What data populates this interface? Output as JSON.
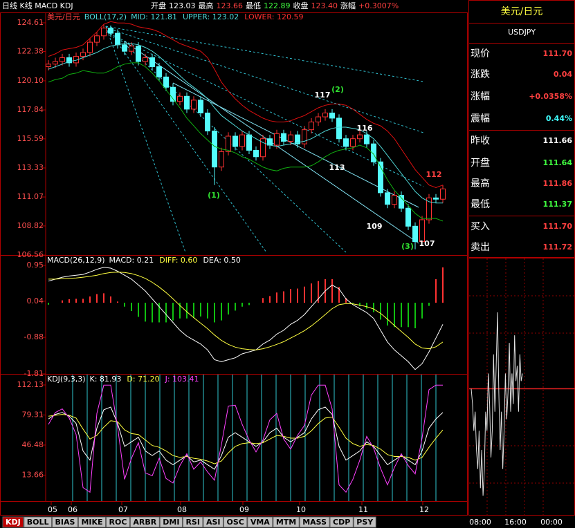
{
  "header": {
    "title": "日线 K线 MACD KDJ",
    "quote": [
      {
        "label": "开盘",
        "value": "123.03"
      },
      {
        "label": "最高",
        "value": "123.66"
      },
      {
        "label": "最低",
        "value": "122.89"
      },
      {
        "label": "收盘",
        "value": "123.40"
      },
      {
        "label": "涨幅",
        "value": "+0.3007%"
      }
    ]
  },
  "chart_data": [
    {
      "type": "candlestick",
      "title": "美元/日元",
      "indicator": "BOLL(17,2)",
      "legend": [
        "MID: 121.81",
        "UPPER: 123.02",
        "LOWER: 120.59"
      ],
      "ylim": [
        106.56,
        124.61
      ],
      "yticks": [
        124.61,
        122.38,
        {
          "value": 120.1,
          "label": "120.10"
        },
        117.84,
        115.59,
        113.33,
        111.07,
        108.82,
        106.56
      ],
      "up_color": "#ff3232",
      "down_color": "#54fcfc",
      "open": [
        121.2,
        121.4,
        121.6,
        121.9,
        121.5,
        122.0,
        122.3,
        123.1,
        123.6,
        124.2,
        123.8,
        122.9,
        122.4,
        122.8,
        121.6,
        121.9,
        121.2,
        120.4,
        119.6,
        118.5,
        118.9,
        117.9,
        118.6,
        117.6,
        116.2,
        113.4,
        114.6,
        115.8,
        115.0,
        115.9,
        114.7,
        114.2,
        115.6,
        115.1,
        116.0,
        115.4,
        115.9,
        115.2,
        116.3,
        116.9,
        117.3,
        117.6,
        117.2,
        115.6,
        115.0,
        115.6,
        115.9,
        115.2,
        113.8,
        111.4,
        110.5,
        111.2,
        110.2,
        108.8,
        107.6,
        109.3,
        111.0,
        110.9
      ],
      "high": [
        121.7,
        121.9,
        122.2,
        122.2,
        122.3,
        122.6,
        123.4,
        123.9,
        124.5,
        124.4,
        124.1,
        123.2,
        123.1,
        123.1,
        122.2,
        122.2,
        121.5,
        120.7,
        119.9,
        119.2,
        119.2,
        118.9,
        118.9,
        117.9,
        116.5,
        114.9,
        116.1,
        116.1,
        116.2,
        116.2,
        115.0,
        115.9,
        115.9,
        116.3,
        116.3,
        116.2,
        116.2,
        116.6,
        117.2,
        117.6,
        117.9,
        117.9,
        117.5,
        115.9,
        115.9,
        116.2,
        116.2,
        115.5,
        114.1,
        111.7,
        111.5,
        111.5,
        110.5,
        109.1,
        109.6,
        111.3,
        111.3,
        112.0
      ],
      "low": [
        120.9,
        121.1,
        121.3,
        121.2,
        121.2,
        121.7,
        122.0,
        122.8,
        123.3,
        123.5,
        122.6,
        122.1,
        122.1,
        121.3,
        121.3,
        120.9,
        120.1,
        119.3,
        118.2,
        118.2,
        117.6,
        117.6,
        117.3,
        115.9,
        112.0,
        113.1,
        114.3,
        114.7,
        114.7,
        114.4,
        113.9,
        113.9,
        114.8,
        114.8,
        115.1,
        115.1,
        114.9,
        114.9,
        116.0,
        116.6,
        117.0,
        116.9,
        115.3,
        114.7,
        114.7,
        115.3,
        114.9,
        113.5,
        111.1,
        110.2,
        110.2,
        109.9,
        108.5,
        107.0,
        107.3,
        109.0,
        110.6,
        110.6
      ],
      "close": [
        121.4,
        121.6,
        121.9,
        121.5,
        122.0,
        122.3,
        123.1,
        123.6,
        124.2,
        123.8,
        122.9,
        122.4,
        122.8,
        121.6,
        121.9,
        121.2,
        120.4,
        119.6,
        118.5,
        118.9,
        117.9,
        118.6,
        117.6,
        116.2,
        113.4,
        114.6,
        115.8,
        115.0,
        115.9,
        114.7,
        114.2,
        115.6,
        115.1,
        116.0,
        115.4,
        115.9,
        115.2,
        116.3,
        116.9,
        117.3,
        117.6,
        117.2,
        115.6,
        115.0,
        115.6,
        115.9,
        115.2,
        113.8,
        111.4,
        110.5,
        111.2,
        110.2,
        108.8,
        107.6,
        109.3,
        111.0,
        110.9,
        111.7
      ],
      "series": [
        {
          "name": "MID",
          "color": "#50d8d8",
          "values": [
            121.0,
            121.2,
            121.4,
            121.6,
            121.7,
            121.9,
            122.1,
            122.3,
            122.6,
            122.8,
            122.9,
            123.0,
            123.0,
            122.9,
            122.7,
            122.4,
            122.0,
            121.5,
            121.0,
            120.5,
            120.0,
            119.6,
            119.2,
            118.7,
            118.0,
            117.4,
            117.0,
            116.6,
            116.2,
            115.9,
            115.6,
            115.3,
            115.1,
            115.0,
            115.1,
            115.2,
            115.3,
            115.4,
            115.6,
            115.9,
            116.2,
            116.4,
            116.5,
            116.5,
            116.4,
            116.3,
            116.0,
            115.6,
            115.0,
            114.3,
            113.6,
            112.9,
            112.2,
            111.5,
            111.0,
            110.7,
            110.6,
            110.6
          ]
        },
        {
          "name": "UPPER",
          "color": "#e01010",
          "values": [
            122.0,
            122.2,
            122.5,
            122.6,
            122.7,
            122.9,
            123.4,
            123.9,
            124.5,
            124.7,
            124.6,
            124.6,
            124.5,
            124.3,
            124.2,
            124.1,
            123.9,
            123.6,
            123.3,
            123.0,
            122.8,
            122.6,
            122.4,
            121.9,
            121.0,
            120.0,
            119.3,
            118.7,
            118.2,
            117.8,
            117.5,
            117.2,
            117.0,
            116.9,
            116.9,
            117.0,
            117.2,
            117.4,
            117.7,
            118.0,
            118.2,
            118.3,
            118.3,
            118.2,
            117.9,
            117.5,
            117.1,
            116.8,
            116.6,
            116.2,
            115.6,
            114.8,
            114.0,
            113.2,
            112.6,
            112.0,
            111.8,
            112.0
          ]
        },
        {
          "name": "LOWER",
          "color": "#10b010",
          "values": [
            120.0,
            120.2,
            120.3,
            120.6,
            120.7,
            120.9,
            120.8,
            120.7,
            120.7,
            120.9,
            121.2,
            121.4,
            121.5,
            121.5,
            121.2,
            120.7,
            120.1,
            119.4,
            118.7,
            118.0,
            117.2,
            116.6,
            116.0,
            115.5,
            115.0,
            114.8,
            114.7,
            114.5,
            114.2,
            114.0,
            113.7,
            113.4,
            113.2,
            113.1,
            113.3,
            113.4,
            113.4,
            113.4,
            113.5,
            113.8,
            114.2,
            114.5,
            114.7,
            114.8,
            114.9,
            115.1,
            114.9,
            114.4,
            113.4,
            112.4,
            111.6,
            111.0,
            110.4,
            109.8,
            109.4,
            109.4,
            109.4,
            109.2
          ]
        }
      ],
      "annotations": [
        "117",
        "(2)",
        "116",
        "113",
        "112",
        "109",
        "107",
        "(3)",
        "(1)"
      ]
    },
    {
      "type": "macd",
      "title": "MACD(26,12,9)",
      "legend": [
        "MACD: 0.21",
        "DIFF: 0.60",
        "DEA: 0.50"
      ],
      "ylim": [
        -1.81,
        0.95
      ],
      "yticks": [
        0.95,
        0.04,
        -0.88,
        -1.81
      ],
      "up_color": "#ff3232",
      "down_color": "#10c010",
      "values": [
        -0.05,
        0,
        0.06,
        0.09,
        0.1,
        0.1,
        0.16,
        0.22,
        0.24,
        0.16,
        0.03,
        -0.1,
        -0.21,
        -0.36,
        -0.48,
        -0.5,
        -0.5,
        -0.5,
        -0.45,
        -0.4,
        -0.4,
        -0.38,
        -0.35,
        -0.4,
        -0.5,
        -0.45,
        -0.3,
        -0.2,
        -0.1,
        -0.06,
        0,
        0.12,
        0.17,
        0.26,
        0.29,
        0.35,
        0.36,
        0.41,
        0.49,
        0.55,
        0.6,
        0.6,
        0.4,
        0.12,
        -0.02,
        -0.09,
        -0.15,
        -0.24,
        -0.43,
        -0.58,
        -0.62,
        -0.62,
        -0.62,
        -0.65,
        -0.4,
        -0.08,
        0.6,
        0.9
      ],
      "series": [
        {
          "name": "DIFF",
          "color": "#ffffff",
          "values": [
            0.55,
            0.6,
            0.65,
            0.68,
            0.7,
            0.72,
            0.78,
            0.85,
            0.9,
            0.88,
            0.8,
            0.7,
            0.6,
            0.45,
            0.3,
            0.1,
            -0.1,
            -0.3,
            -0.5,
            -0.7,
            -0.85,
            -0.95,
            -1.05,
            -1.2,
            -1.45,
            -1.5,
            -1.45,
            -1.4,
            -1.3,
            -1.25,
            -1.2,
            -1.05,
            -0.95,
            -0.8,
            -0.7,
            -0.55,
            -0.45,
            -0.3,
            -0.1,
            0.1,
            0.3,
            0.45,
            0.35,
            0.1,
            -0.05,
            -0.15,
            -0.25,
            -0.4,
            -0.7,
            -1.0,
            -1.2,
            -1.35,
            -1.5,
            -1.7,
            -1.55,
            -1.25,
            -0.9,
            -0.55
          ]
        },
        {
          "name": "DEA",
          "color": "#ffff40",
          "values": [
            0.6,
            0.6,
            0.61,
            0.62,
            0.63,
            0.65,
            0.67,
            0.7,
            0.74,
            0.77,
            0.78,
            0.77,
            0.74,
            0.69,
            0.62,
            0.52,
            0.4,
            0.26,
            0.1,
            -0.07,
            -0.23,
            -0.38,
            -0.52,
            -0.66,
            -0.82,
            -0.96,
            -1.06,
            -1.13,
            -1.17,
            -1.19,
            -1.2,
            -1.17,
            -1.12,
            -1.06,
            -0.99,
            -0.9,
            -0.81,
            -0.71,
            -0.59,
            -0.45,
            -0.3,
            -0.15,
            -0.05,
            -0.02,
            -0.03,
            -0.06,
            -0.1,
            -0.16,
            -0.27,
            -0.42,
            -0.58,
            -0.73,
            -0.88,
            -1.05,
            -1.15,
            -1.17,
            -1.12,
            -1.0
          ]
        }
      ]
    },
    {
      "type": "kdj",
      "title": "KDJ(9,3,3)",
      "legend": [
        "K: 81.93",
        "D: 71.20",
        "J: 103.41"
      ],
      "ylim": [
        -14.7,
        112.13
      ],
      "yticks": [
        112.13,
        79.31,
        46.48,
        13.66
      ],
      "series": [
        {
          "name": "K",
          "color": "#ffffff",
          "values": [
            75,
            80,
            82,
            78,
            70,
            40,
            30,
            65,
            85,
            88,
            70,
            45,
            50,
            55,
            40,
            35,
            40,
            30,
            25,
            30,
            35,
            28,
            30,
            25,
            20,
            35,
            55,
            60,
            55,
            50,
            45,
            50,
            60,
            65,
            55,
            50,
            55,
            60,
            75,
            85,
            88,
            80,
            45,
            30,
            35,
            40,
            50,
            45,
            35,
            25,
            30,
            35,
            30,
            25,
            40,
            65,
            75,
            82
          ]
        },
        {
          "name": "D",
          "color": "#ffff40",
          "values": [
            78,
            79,
            80,
            79,
            76,
            64,
            53,
            57,
            66,
            73,
            72,
            63,
            59,
            58,
            52,
            46,
            44,
            40,
            35,
            33,
            34,
            32,
            31,
            29,
            26,
            29,
            38,
            45,
            48,
            49,
            48,
            49,
            53,
            57,
            56,
            54,
            54,
            56,
            62,
            70,
            76,
            77,
            66,
            54,
            48,
            45,
            47,
            46,
            42,
            36,
            34,
            34,
            33,
            30,
            33,
            44,
            54,
            63
          ]
        },
        {
          "name": "J",
          "color": "#ff40ff",
          "values": [
            69,
            82,
            86,
            76,
            58,
            0,
            -5,
            81,
            112,
            112,
            66,
            9,
            32,
            49,
            16,
            13,
            32,
            10,
            5,
            24,
            37,
            20,
            28,
            17,
            8,
            47,
            89,
            90,
            69,
            52,
            39,
            52,
            74,
            81,
            53,
            42,
            57,
            68,
            101,
            112,
            112,
            86,
            3,
            -5,
            9,
            30,
            56,
            43,
            21,
            3,
            22,
            37,
            24,
            15,
            54,
            107,
            112,
            112
          ]
        }
      ]
    },
    {
      "type": "line",
      "color": "#e0e0e0",
      "ylim": [
        111.33,
        111.99
      ],
      "times": [
        "08:00",
        "16:00",
        "00:00"
      ],
      "values": [
        111.66,
        111.62,
        111.55,
        111.6,
        111.5,
        111.45,
        111.55,
        111.4,
        111.5,
        111.38,
        111.45,
        111.6,
        111.55,
        111.7,
        111.62,
        111.48,
        111.55,
        111.75,
        111.6,
        111.72,
        111.86,
        111.65,
        111.5,
        111.6,
        111.45,
        111.55,
        111.7,
        111.58,
        111.65,
        111.78,
        111.6,
        111.7,
        111.62,
        111.8,
        111.68,
        111.72,
        111.6,
        111.75,
        111.68,
        111.7
      ]
    }
  ],
  "months": [
    "05",
    "06",
    "07",
    "08",
    "09",
    "10",
    "11",
    "12"
  ],
  "quote_panel": {
    "title": "美元/日元",
    "symbol": "USDJPY",
    "rows": [
      {
        "label": "现价",
        "value": "111.70",
        "color": "#ff4040"
      },
      {
        "label": "涨跌",
        "value": "0.04",
        "color": "#ff4040"
      },
      {
        "label": "涨幅",
        "value": "+0.0358%",
        "color": "#ff4040"
      },
      {
        "label": "震幅",
        "value": "0.44%",
        "color": "#40ffff"
      },
      {
        "label": "昨收",
        "value": "111.66",
        "color": "#ffffff"
      },
      {
        "label": "开盘",
        "value": "111.64",
        "color": "#40ff40"
      },
      {
        "label": "最高",
        "value": "111.86",
        "color": "#ff4040"
      },
      {
        "label": "最低",
        "value": "111.37",
        "color": "#40ff40"
      },
      {
        "label": "买入",
        "value": "111.70",
        "color": "#ff4040"
      },
      {
        "label": "卖出",
        "value": "111.72",
        "color": "#ff4040"
      }
    ]
  },
  "tabs": [
    "KDJ",
    "BOLL",
    "BIAS",
    "MIKE",
    "ROC",
    "ARBR",
    "DMI",
    "RSI",
    "ASI",
    "OSC",
    "VMA",
    "MTM",
    "MASS",
    "CDP",
    "PSY"
  ]
}
